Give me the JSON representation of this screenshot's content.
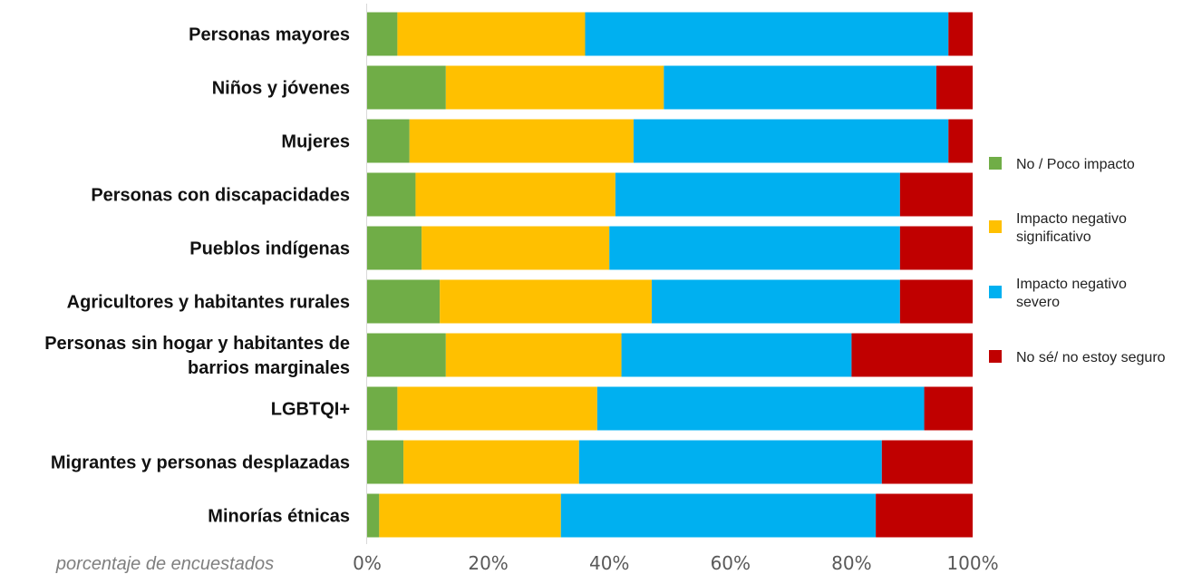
{
  "chart_data": {
    "type": "bar",
    "orientation": "horizontal",
    "stacked": true,
    "categories": [
      "Personas mayores",
      "Niños y jóvenes",
      "Mujeres",
      "Personas con discapacidades",
      "Pueblos indígenas",
      "Agricultores y habitantes rurales",
      "Personas sin hogar y habitantes de barrios marginales",
      "LGBTQI+",
      "Migrantes y personas desplazadas",
      "Minorías étnicas"
    ],
    "category_lines": [
      [
        "Personas mayores"
      ],
      [
        "Niños y jóvenes"
      ],
      [
        "Mujeres"
      ],
      [
        "Personas con discapacidades"
      ],
      [
        "Pueblos indígenas"
      ],
      [
        "Agricultores y habitantes rurales"
      ],
      [
        "Personas sin hogar y habitantes de",
        "barrios marginales"
      ],
      [
        "LGBTQI+"
      ],
      [
        "Migrantes y personas desplazadas"
      ],
      [
        "Minorías étnicas"
      ]
    ],
    "series": [
      {
        "name": "No / Poco impacto",
        "legend_lines": [
          "No / Poco impacto"
        ],
        "color": "#70ad47",
        "values": [
          5,
          13,
          7,
          8,
          9,
          12,
          13,
          5,
          6,
          2
        ]
      },
      {
        "name": "Impacto negativo significativo",
        "legend_lines": [
          "Impacto negativo",
          "significativo"
        ],
        "color": "#ffc000",
        "values": [
          31,
          36,
          37,
          33,
          31,
          35,
          29,
          33,
          29,
          30
        ]
      },
      {
        "name": "Impacto negativo severo",
        "legend_lines": [
          "Impacto negativo",
          "severo"
        ],
        "color": "#00b0f0",
        "values": [
          60,
          45,
          52,
          47,
          48,
          41,
          38,
          54,
          50,
          52
        ]
      },
      {
        "name": "No sé/ no estoy seguro",
        "legend_lines": [
          "No sé/ no estoy seguro"
        ],
        "color": "#c00000",
        "values": [
          4,
          6,
          4,
          12,
          12,
          12,
          20,
          8,
          15,
          16
        ]
      }
    ],
    "xlim": [
      0,
      100
    ],
    "xticks": [
      0,
      20,
      40,
      60,
      80,
      100
    ],
    "xtick_labels": [
      "0%",
      "20%",
      "40%",
      "60%",
      "80%",
      "100%"
    ],
    "xlabel": "porcentaje de encuestados",
    "ylabel": "",
    "title": "",
    "legend_position": "right",
    "grid": false
  }
}
